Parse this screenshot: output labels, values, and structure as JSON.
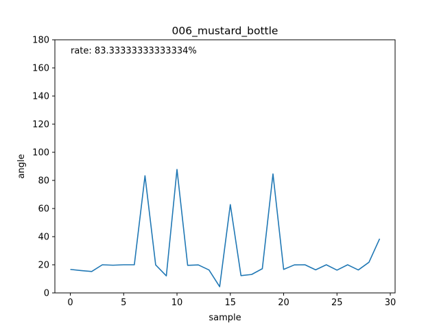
{
  "chart_data": {
    "type": "line",
    "title": "006_mustard_bottle",
    "xlabel": "sample",
    "ylabel": "angle",
    "annotation": "rate: 83.33333333333334%",
    "xlim": [
      -1.45,
      30.45
    ],
    "ylim": [
      0,
      180
    ],
    "xticks": [
      0,
      5,
      10,
      15,
      20,
      25,
      30
    ],
    "yticks": [
      0,
      20,
      40,
      60,
      80,
      100,
      120,
      140,
      160,
      180
    ],
    "grid": false,
    "series": [
      {
        "color": "#1f77b4",
        "x": [
          0,
          1,
          2,
          3,
          4,
          5,
          6,
          7,
          8,
          9,
          10,
          11,
          12,
          13,
          14,
          15,
          16,
          17,
          18,
          19,
          20,
          21,
          22,
          23,
          24,
          25,
          26,
          27,
          28,
          29
        ],
        "y": [
          16.7,
          15.9,
          15.2,
          20.0,
          19.7,
          20.0,
          20.0,
          83.3,
          19.9,
          12.1,
          87.8,
          19.6,
          19.9,
          16.3,
          4.4,
          62.8,
          12.3,
          13.1,
          17.2,
          84.6,
          16.7,
          19.9,
          20.0,
          16.4,
          20.0,
          16.2,
          20.0,
          16.3,
          21.8,
          38.5
        ]
      }
    ]
  }
}
